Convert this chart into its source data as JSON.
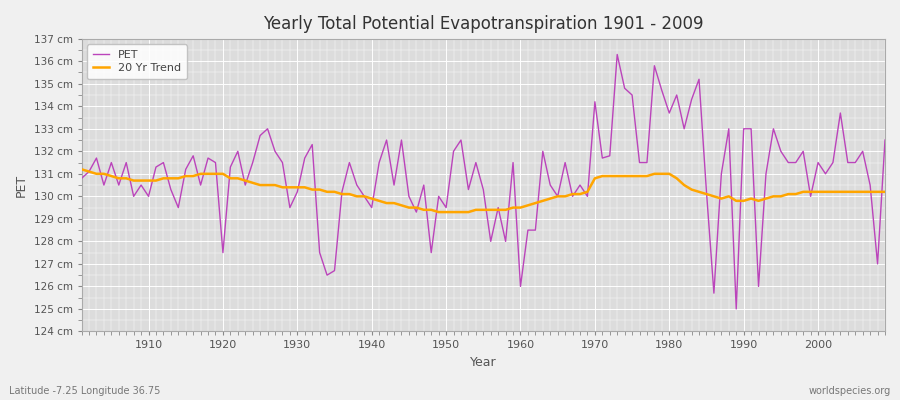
{
  "title": "Yearly Total Potential Evapotranspiration 1901 - 2009",
  "xlabel": "Year",
  "ylabel": "PET",
  "bottom_left": "Latitude -7.25 Longitude 36.75",
  "bottom_right": "worldspecies.org",
  "ylim": [
    124,
    137
  ],
  "pet_color": "#BB44BB",
  "trend_color": "#FFA500",
  "fig_bg_color": "#F0F0F0",
  "plot_bg_color": "#DCDCDC",
  "legend_labels": [
    "PET",
    "20 Yr Trend"
  ],
  "years": [
    1901,
    1902,
    1903,
    1904,
    1905,
    1906,
    1907,
    1908,
    1909,
    1910,
    1911,
    1912,
    1913,
    1914,
    1915,
    1916,
    1917,
    1918,
    1919,
    1920,
    1921,
    1922,
    1923,
    1924,
    1925,
    1926,
    1927,
    1928,
    1929,
    1930,
    1931,
    1932,
    1933,
    1934,
    1935,
    1936,
    1937,
    1938,
    1939,
    1940,
    1941,
    1942,
    1943,
    1944,
    1945,
    1946,
    1947,
    1948,
    1949,
    1950,
    1951,
    1952,
    1953,
    1954,
    1955,
    1956,
    1957,
    1958,
    1959,
    1960,
    1961,
    1962,
    1963,
    1964,
    1965,
    1966,
    1967,
    1968,
    1969,
    1970,
    1971,
    1972,
    1973,
    1974,
    1975,
    1976,
    1977,
    1978,
    1979,
    1980,
    1981,
    1982,
    1983,
    1984,
    1985,
    1986,
    1987,
    1988,
    1989,
    1990,
    1991,
    1992,
    1993,
    1994,
    1995,
    1996,
    1997,
    1998,
    1999,
    2000,
    2001,
    2002,
    2003,
    2004,
    2005,
    2006,
    2007,
    2008,
    2009
  ],
  "pet_values": [
    130.8,
    131.1,
    131.7,
    130.5,
    131.5,
    130.5,
    131.5,
    130.0,
    130.5,
    130.0,
    131.3,
    131.5,
    130.3,
    129.5,
    131.2,
    131.8,
    130.5,
    131.7,
    131.5,
    127.5,
    131.3,
    132.0,
    130.5,
    131.5,
    132.7,
    133.0,
    132.0,
    131.5,
    129.5,
    130.2,
    131.7,
    132.3,
    127.5,
    126.5,
    126.7,
    130.2,
    131.5,
    130.5,
    130.0,
    129.5,
    131.5,
    132.5,
    130.5,
    132.5,
    130.0,
    129.3,
    130.5,
    127.5,
    130.0,
    129.5,
    132.0,
    132.5,
    130.3,
    131.5,
    130.3,
    128.0,
    129.5,
    128.0,
    131.5,
    126.0,
    128.5,
    128.5,
    132.0,
    130.5,
    130.0,
    131.5,
    130.0,
    130.5,
    130.0,
    134.2,
    131.7,
    131.8,
    136.3,
    134.8,
    134.5,
    131.5,
    131.5,
    135.8,
    134.7,
    133.7,
    134.5,
    133.0,
    134.3,
    135.2,
    130.2,
    125.7,
    131.0,
    133.0,
    125.0,
    133.0,
    133.0,
    126.0,
    131.0,
    133.0,
    132.0,
    131.5,
    131.5,
    132.0,
    130.0,
    131.5,
    131.0,
    131.5,
    133.7,
    131.5,
    131.5,
    132.0,
    130.5,
    127.0,
    132.5
  ],
  "trend_values": [
    131.2,
    131.1,
    131.0,
    131.0,
    130.9,
    130.8,
    130.8,
    130.7,
    130.7,
    130.7,
    130.7,
    130.8,
    130.8,
    130.8,
    130.9,
    130.9,
    131.0,
    131.0,
    131.0,
    131.0,
    130.8,
    130.8,
    130.7,
    130.6,
    130.5,
    130.5,
    130.5,
    130.4,
    130.4,
    130.4,
    130.4,
    130.3,
    130.3,
    130.2,
    130.2,
    130.1,
    130.1,
    130.0,
    130.0,
    129.9,
    129.8,
    129.7,
    129.7,
    129.6,
    129.5,
    129.5,
    129.4,
    129.4,
    129.3,
    129.3,
    129.3,
    129.3,
    129.3,
    129.4,
    129.4,
    129.4,
    129.4,
    129.4,
    129.5,
    129.5,
    129.6,
    129.7,
    129.8,
    129.9,
    130.0,
    130.0,
    130.1,
    130.1,
    130.2,
    130.8,
    130.9,
    130.9,
    130.9,
    130.9,
    130.9,
    130.9,
    130.9,
    131.0,
    131.0,
    131.0,
    130.8,
    130.5,
    130.3,
    130.2,
    130.1,
    130.0,
    129.9,
    130.0,
    129.8,
    129.8,
    129.9,
    129.8,
    129.9,
    130.0,
    130.0,
    130.1,
    130.1,
    130.2,
    130.2,
    130.2,
    130.2,
    130.2,
    130.2,
    130.2,
    130.2,
    130.2,
    130.2,
    130.2,
    130.2
  ]
}
